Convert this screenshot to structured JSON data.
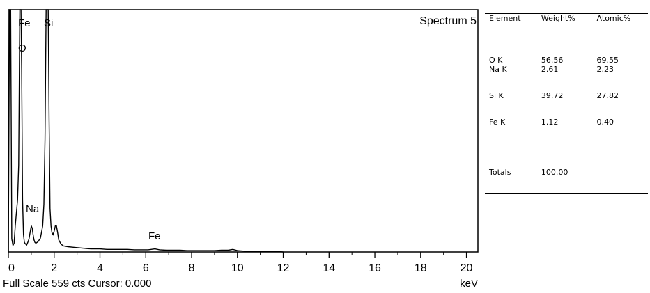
{
  "spectrum": {
    "title": "Spectrum 5",
    "footer_left": "Full Scale 559 cts Cursor: 0.000",
    "footer_right": "keV"
  },
  "table": {
    "headers": [
      "Element",
      "Weight%",
      "Atomic%"
    ],
    "rows": [
      {
        "element": "O K",
        "weight": "56.56",
        "atomic": "69.55"
      },
      {
        "element": "Na K",
        "weight": "2.61",
        "atomic": "2.23"
      },
      {
        "element": "Si K",
        "weight": "39.72",
        "atomic": "27.82"
      },
      {
        "element": "Fe K",
        "weight": "1.12",
        "atomic": "0.40"
      }
    ],
    "totals_label": "Totals",
    "totals_weight": "100.00"
  },
  "chart_data": {
    "type": "line",
    "title": "Spectrum 5",
    "xlabel": "keV",
    "ylabel": "",
    "xlim": [
      0,
      20.5
    ],
    "ylim": [
      0,
      559
    ],
    "x_ticks": [
      0,
      2,
      4,
      6,
      8,
      10,
      12,
      14,
      16,
      18,
      20
    ],
    "tick_labels": [
      "0",
      "2",
      "4",
      "6",
      "8",
      "10",
      "12",
      "14",
      "16",
      "18",
      "20"
    ],
    "grid": false,
    "series": [
      {
        "x": [
          0,
          0.05,
          0.1,
          0.15,
          0.2,
          0.25,
          0.3,
          0.35,
          0.4,
          0.45,
          0.5,
          0.52,
          0.55,
          0.58,
          0.62,
          0.66,
          0.7,
          0.75,
          0.8,
          0.85,
          0.9,
          0.95,
          1.0,
          1.04,
          1.08,
          1.12,
          1.16,
          1.2,
          1.3,
          1.4,
          1.5,
          1.55,
          1.6,
          1.65,
          1.7,
          1.74,
          1.78,
          1.82,
          1.86,
          1.9,
          1.95,
          2.0,
          2.05,
          2.1,
          2.15,
          2.2,
          2.3,
          2.4,
          2.6,
          2.8,
          3.0,
          3.2,
          3.4,
          3.6,
          3.8,
          4.0,
          4.3,
          4.6,
          4.9,
          5.2,
          5.5,
          5.8,
          6.1,
          6.4,
          6.6,
          6.9,
          7.2,
          7.5,
          7.8,
          8.1,
          8.4,
          8.7,
          9.0,
          9.3,
          9.6,
          9.8,
          10.0,
          10.3,
          10.6,
          10.9,
          11.2,
          11.5,
          11.8,
          12.0
        ],
        "y": [
          0,
          560,
          560,
          30,
          15,
          20,
          60,
          90,
          120,
          200,
          560,
          560,
          560,
          420,
          120,
          40,
          22,
          18,
          16,
          22,
          30,
          45,
          60,
          55,
          40,
          28,
          22,
          20,
          24,
          32,
          60,
          110,
          260,
          560,
          560,
          560,
          300,
          100,
          60,
          45,
          40,
          48,
          60,
          60,
          45,
          28,
          18,
          14,
          12,
          11,
          10,
          9,
          8,
          7,
          7,
          7,
          6,
          6,
          6,
          6,
          5,
          5,
          5,
          7,
          5,
          4,
          4,
          4,
          3,
          3,
          3,
          3,
          3,
          4,
          4,
          6,
          3,
          2,
          2,
          2,
          1,
          1,
          1,
          0
        ]
      }
    ],
    "annotations": [
      "Fe",
      "Si",
      "O",
      "Na",
      "Fe"
    ]
  }
}
